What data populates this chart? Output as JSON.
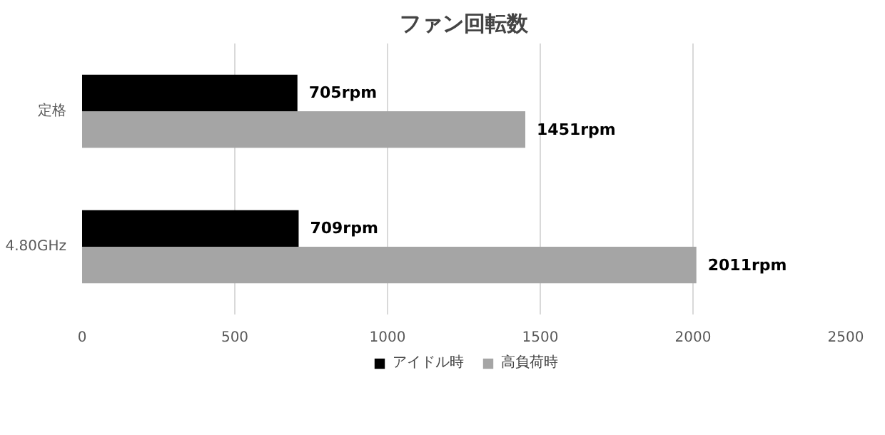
{
  "chart_data": {
    "type": "bar",
    "orientation": "horizontal",
    "title": "ファン回転数",
    "categories": [
      "定格",
      "4.80GHz"
    ],
    "series": [
      {
        "name": "アイドル時",
        "color": "#000000",
        "values": [
          705,
          709
        ],
        "value_labels": [
          "705rpm",
          "709rpm"
        ]
      },
      {
        "name": "高負荷時",
        "color": "#a5a5a5",
        "values": [
          1451,
          2011
        ],
        "value_labels": [
          "1451rpm",
          "2011rpm"
        ]
      }
    ],
    "xlim": [
      0,
      2500
    ],
    "xticks": [
      0,
      500,
      1000,
      1500,
      2000,
      2500
    ],
    "grid": "x",
    "legend": "bottom"
  }
}
